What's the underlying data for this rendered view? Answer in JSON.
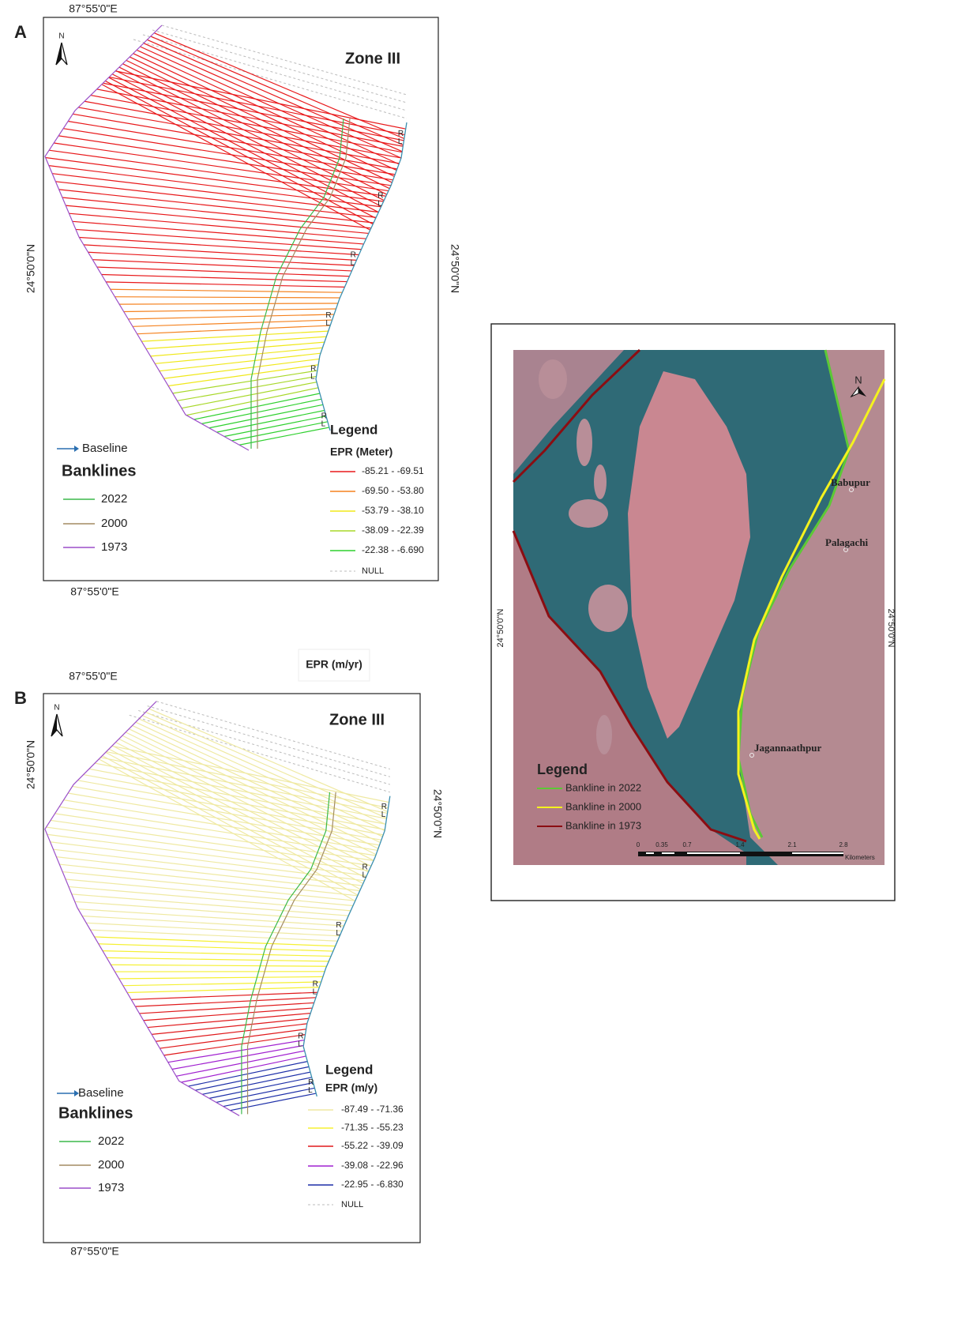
{
  "panels": [
    {
      "label": "A",
      "top_longitude": "87°55'0\"E",
      "bottom_longitude": "87°55'0\"E",
      "latitude": "24°50'0\"N",
      "north": "N",
      "zone": "Zone III",
      "baseline": "Baseline",
      "transect_ends": [
        "L",
        "R"
      ],
      "banklines_title": "Banklines",
      "banklines": [
        {
          "year": "2022",
          "color": "#3cb94a"
        },
        {
          "year": "2000",
          "color": "#a38c62"
        },
        {
          "year": "1973",
          "color": "#9b4fc8"
        }
      ],
      "legend_title": "Legend",
      "epr_title": "EPR (Meter)",
      "classes": [
        {
          "label": "-85.21 - -69.51",
          "color": "#e8191b"
        },
        {
          "label": "-69.50 - -53.80",
          "color": "#f5821f"
        },
        {
          "label": "-53.79 - -38.10",
          "color": "#f0e81a"
        },
        {
          "label": "-38.09 - -22.39",
          "color": "#a8d82a"
        },
        {
          "label": "-22.38 - -6.690",
          "color": "#2fd02f"
        }
      ],
      "null_label": "NULL"
    },
    {
      "label": "B",
      "top_longitude": "87°55'0\"E",
      "bottom_longitude": "87°55'0\"E",
      "latitude": "24°50'0\"N",
      "north": "N",
      "zone": "Zone III",
      "baseline": "Baseline",
      "transect_ends": [
        "L",
        "R"
      ],
      "banklines_title": "Banklines",
      "banklines": [
        {
          "year": "2022",
          "color": "#3cb94a"
        },
        {
          "year": "2000",
          "color": "#a38c62"
        },
        {
          "year": "1973",
          "color": "#9b4fc8"
        }
      ],
      "epr_box": "EPR (m/yr)",
      "legend_title": "Legend",
      "epr_title": "EPR (m/y)",
      "classes": [
        {
          "label": "-87.49 - -71.36",
          "color": "#efe9a2"
        },
        {
          "label": "-71.35 - -55.23",
          "color": "#f5f032"
        },
        {
          "label": "-55.22 - -39.09",
          "color": "#e0191b"
        },
        {
          "label": "-39.08 - -22.96",
          "color": "#a020d0"
        },
        {
          "label": "-22.95 - -6.830",
          "color": "#1d2fa8"
        }
      ],
      "null_label": "NULL"
    }
  ],
  "satellite_map": {
    "north": "N",
    "latitude": "24°50'0\"N",
    "places": [
      "Babupur",
      "Palagachi",
      "Jagannaathpur"
    ],
    "legend_title": "Legend",
    "banklines": [
      {
        "label": "Bankline in 2022",
        "color": "#5cc936"
      },
      {
        "label": "Bankline in 2000",
        "color": "#f4f21e"
      },
      {
        "label": "Bankline in 1973",
        "color": "#8b0d12"
      }
    ],
    "scale_labels": [
      "0",
      "0.35",
      "0.7",
      "1.4",
      "2.1",
      "2.8"
    ],
    "scale_unit": "Kilometers"
  }
}
